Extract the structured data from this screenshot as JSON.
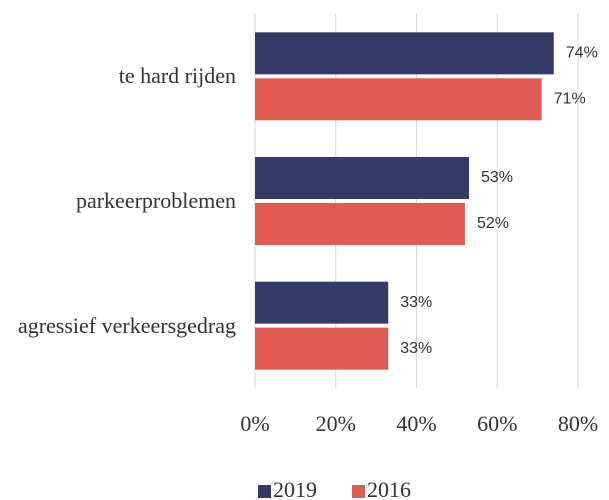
{
  "chart_data": {
    "type": "bar",
    "orientation": "horizontal",
    "categories": [
      "te hard rijden",
      "parkeerproblemen",
      "agressief verkeersgedrag"
    ],
    "series": [
      {
        "name": "2019",
        "color": "#363a66",
        "values": [
          74,
          53,
          33
        ],
        "value_labels": [
          "74%",
          "53%",
          "33%"
        ]
      },
      {
        "name": "2016",
        "color": "#e05c52",
        "values": [
          71,
          52,
          33
        ],
        "value_labels": [
          "71%",
          "52%",
          "33%"
        ]
      }
    ],
    "xlim": [
      0,
      80
    ],
    "xticks": [
      {
        "value": 0,
        "label": "0%"
      },
      {
        "value": 20,
        "label": "20%"
      },
      {
        "value": 40,
        "label": "40%"
      },
      {
        "value": 60,
        "label": "60%"
      },
      {
        "value": 80,
        "label": "80%"
      }
    ],
    "grid": true,
    "legend": "bottom"
  }
}
